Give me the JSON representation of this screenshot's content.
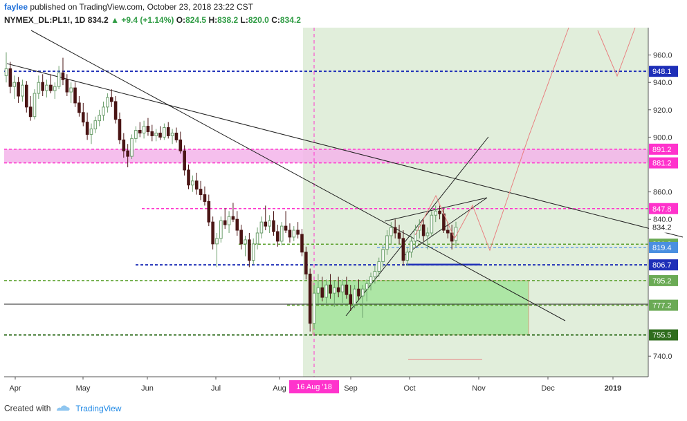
{
  "header": {
    "author": "faylee",
    "published": " published on TradingView.com, October 23, 2018 23:22 CST",
    "symbol": "NYMEX_DL:PL1!, 1D",
    "last": "834.2",
    "change": "+9.4 (+1.14%)",
    "o_label": "O:",
    "o": "824.5",
    "h_label": "H:",
    "h": "838.2",
    "l_label": "L:",
    "l": "820.0",
    "c_label": "C:",
    "c": "834.2"
  },
  "footer": {
    "created_with": "Created with",
    "brand": "TradingView"
  },
  "colors": {
    "up_candle": "#6b9e6b",
    "down_candle": "#4a1515",
    "blue_level": "#1e2fb8",
    "magenta": "#ff33cc",
    "green_level": "#5aa02c",
    "dark_green": "#2f6d1e",
    "projection": "#e88080",
    "shade": "#e1eedb",
    "zone_pink": "#f3b4ea",
    "zone_green": "#a8e6a0"
  },
  "chart_data": {
    "type": "candlestick",
    "instrument": "NYMEX_DL:PL1!",
    "timeframe": "1D",
    "x_ticks": [
      "Apr",
      "May",
      "Jun",
      "Jul",
      "Aug",
      "Sep",
      "Oct",
      "Nov",
      "Dec",
      "2019"
    ],
    "cursor_date": "16 Aug '18",
    "y_ticks": [
      "960.0",
      "940.0",
      "920.0",
      "900.0",
      "860.0",
      "840.0",
      "740.0"
    ],
    "ylim": [
      727,
      980
    ],
    "price_labels": [
      {
        "text": "948.1",
        "value": 948.1,
        "style": "blue"
      },
      {
        "text": "891.2",
        "value": 891.2,
        "style": "magenta"
      },
      {
        "text": "881.2",
        "value": 881.2,
        "style": "magenta"
      },
      {
        "text": "847.8",
        "value": 847.8,
        "style": "magenta"
      },
      {
        "text": "834.2",
        "value": 834.2,
        "style": "last"
      },
      {
        "text": "821.8",
        "value": 821.8,
        "style": "green"
      },
      {
        "text": "819.4",
        "value": 819.4,
        "style": "lightblue"
      },
      {
        "text": "806.7",
        "value": 806.7,
        "style": "blue"
      },
      {
        "text": "795.2",
        "value": 795.2,
        "style": "green"
      },
      {
        "text": "777.2",
        "value": 777.2,
        "style": "green"
      },
      {
        "text": "755.5",
        "value": 755.5,
        "style": "darkgreen"
      }
    ],
    "candles": [
      {
        "o": 945,
        "h": 962,
        "l": 940,
        "c": 950
      },
      {
        "o": 950,
        "h": 955,
        "l": 932,
        "c": 937
      },
      {
        "o": 937,
        "h": 945,
        "l": 928,
        "c": 940
      },
      {
        "o": 940,
        "h": 944,
        "l": 925,
        "c": 930
      },
      {
        "o": 930,
        "h": 942,
        "l": 926,
        "c": 938
      },
      {
        "o": 938,
        "h": 941,
        "l": 918,
        "c": 922
      },
      {
        "o": 922,
        "h": 930,
        "l": 912,
        "c": 915
      },
      {
        "o": 915,
        "h": 935,
        "l": 913,
        "c": 932
      },
      {
        "o": 932,
        "h": 945,
        "l": 928,
        "c": 940
      },
      {
        "o": 940,
        "h": 946,
        "l": 930,
        "c": 934
      },
      {
        "o": 934,
        "h": 942,
        "l": 929,
        "c": 938
      },
      {
        "o": 938,
        "h": 946,
        "l": 932,
        "c": 934
      },
      {
        "o": 934,
        "h": 940,
        "l": 928,
        "c": 937
      },
      {
        "o": 937,
        "h": 952,
        "l": 935,
        "c": 947
      },
      {
        "o": 947,
        "h": 958,
        "l": 938,
        "c": 942
      },
      {
        "o": 942,
        "h": 946,
        "l": 930,
        "c": 933
      },
      {
        "o": 933,
        "h": 940,
        "l": 925,
        "c": 936
      },
      {
        "o": 936,
        "h": 940,
        "l": 922,
        "c": 925
      },
      {
        "o": 925,
        "h": 930,
        "l": 915,
        "c": 918
      },
      {
        "o": 918,
        "h": 925,
        "l": 908,
        "c": 911
      },
      {
        "o": 911,
        "h": 918,
        "l": 898,
        "c": 902
      },
      {
        "o": 902,
        "h": 910,
        "l": 895,
        "c": 906
      },
      {
        "o": 906,
        "h": 915,
        "l": 903,
        "c": 912
      },
      {
        "o": 912,
        "h": 920,
        "l": 908,
        "c": 916
      },
      {
        "o": 916,
        "h": 926,
        "l": 912,
        "c": 922
      },
      {
        "o": 922,
        "h": 932,
        "l": 918,
        "c": 929
      },
      {
        "o": 929,
        "h": 935,
        "l": 922,
        "c": 926
      },
      {
        "o": 926,
        "h": 930,
        "l": 910,
        "c": 913
      },
      {
        "o": 913,
        "h": 918,
        "l": 895,
        "c": 898
      },
      {
        "o": 898,
        "h": 903,
        "l": 885,
        "c": 890
      },
      {
        "o": 890,
        "h": 895,
        "l": 878,
        "c": 886
      },
      {
        "o": 886,
        "h": 902,
        "l": 884,
        "c": 899
      },
      {
        "o": 899,
        "h": 908,
        "l": 896,
        "c": 905
      },
      {
        "o": 905,
        "h": 911,
        "l": 900,
        "c": 903
      },
      {
        "o": 903,
        "h": 912,
        "l": 899,
        "c": 908
      },
      {
        "o": 908,
        "h": 914,
        "l": 901,
        "c": 904
      },
      {
        "o": 904,
        "h": 909,
        "l": 897,
        "c": 901
      },
      {
        "o": 901,
        "h": 906,
        "l": 897,
        "c": 903
      },
      {
        "o": 903,
        "h": 908,
        "l": 898,
        "c": 900
      },
      {
        "o": 900,
        "h": 910,
        "l": 898,
        "c": 907
      },
      {
        "o": 907,
        "h": 911,
        "l": 899,
        "c": 901
      },
      {
        "o": 901,
        "h": 906,
        "l": 895,
        "c": 903
      },
      {
        "o": 903,
        "h": 907,
        "l": 896,
        "c": 898
      },
      {
        "o": 898,
        "h": 904,
        "l": 888,
        "c": 890
      },
      {
        "o": 890,
        "h": 894,
        "l": 872,
        "c": 876
      },
      {
        "o": 876,
        "h": 880,
        "l": 862,
        "c": 865
      },
      {
        "o": 865,
        "h": 872,
        "l": 860,
        "c": 868
      },
      {
        "o": 868,
        "h": 874,
        "l": 858,
        "c": 862
      },
      {
        "o": 862,
        "h": 868,
        "l": 854,
        "c": 858
      },
      {
        "o": 858,
        "h": 864,
        "l": 850,
        "c": 853
      },
      {
        "o": 853,
        "h": 858,
        "l": 835,
        "c": 838
      },
      {
        "o": 838,
        "h": 842,
        "l": 818,
        "c": 822
      },
      {
        "o": 822,
        "h": 830,
        "l": 805,
        "c": 826
      },
      {
        "o": 826,
        "h": 842,
        "l": 823,
        "c": 839
      },
      {
        "o": 839,
        "h": 848,
        "l": 833,
        "c": 836
      },
      {
        "o": 836,
        "h": 846,
        "l": 830,
        "c": 842
      },
      {
        "o": 842,
        "h": 852,
        "l": 838,
        "c": 840
      },
      {
        "o": 840,
        "h": 846,
        "l": 828,
        "c": 832
      },
      {
        "o": 832,
        "h": 836,
        "l": 818,
        "c": 822
      },
      {
        "o": 822,
        "h": 828,
        "l": 813,
        "c": 825
      },
      {
        "o": 825,
        "h": 830,
        "l": 805,
        "c": 810
      },
      {
        "o": 810,
        "h": 826,
        "l": 807,
        "c": 822
      },
      {
        "o": 822,
        "h": 834,
        "l": 818,
        "c": 830
      },
      {
        "o": 830,
        "h": 842,
        "l": 826,
        "c": 838
      },
      {
        "o": 838,
        "h": 850,
        "l": 832,
        "c": 835
      },
      {
        "o": 835,
        "h": 843,
        "l": 830,
        "c": 839
      },
      {
        "o": 839,
        "h": 846,
        "l": 828,
        "c": 831
      },
      {
        "o": 831,
        "h": 836,
        "l": 820,
        "c": 824
      },
      {
        "o": 824,
        "h": 838,
        "l": 821,
        "c": 835
      },
      {
        "o": 835,
        "h": 846,
        "l": 830,
        "c": 832
      },
      {
        "o": 832,
        "h": 837,
        "l": 823,
        "c": 827
      },
      {
        "o": 827,
        "h": 835,
        "l": 824,
        "c": 832
      },
      {
        "o": 832,
        "h": 838,
        "l": 826,
        "c": 829
      },
      {
        "o": 829,
        "h": 833,
        "l": 813,
        "c": 816
      },
      {
        "o": 816,
        "h": 820,
        "l": 796,
        "c": 800
      },
      {
        "o": 800,
        "h": 804,
        "l": 758,
        "c": 764
      },
      {
        "o": 764,
        "h": 792,
        "l": 760,
        "c": 786
      },
      {
        "o": 786,
        "h": 800,
        "l": 778,
        "c": 790
      },
      {
        "o": 790,
        "h": 798,
        "l": 780,
        "c": 783
      },
      {
        "o": 783,
        "h": 796,
        "l": 778,
        "c": 792
      },
      {
        "o": 792,
        "h": 800,
        "l": 782,
        "c": 786
      },
      {
        "o": 786,
        "h": 795,
        "l": 776,
        "c": 790
      },
      {
        "o": 790,
        "h": 798,
        "l": 783,
        "c": 787
      },
      {
        "o": 787,
        "h": 796,
        "l": 779,
        "c": 792
      },
      {
        "o": 792,
        "h": 798,
        "l": 782,
        "c": 785
      },
      {
        "o": 785,
        "h": 792,
        "l": 773,
        "c": 778
      },
      {
        "o": 778,
        "h": 792,
        "l": 775,
        "c": 789
      },
      {
        "o": 789,
        "h": 796,
        "l": 781,
        "c": 784
      },
      {
        "o": 784,
        "h": 792,
        "l": 768,
        "c": 789
      },
      {
        "o": 789,
        "h": 796,
        "l": 780,
        "c": 793
      },
      {
        "o": 793,
        "h": 801,
        "l": 788,
        "c": 798
      },
      {
        "o": 798,
        "h": 806,
        "l": 793,
        "c": 802
      },
      {
        "o": 802,
        "h": 812,
        "l": 798,
        "c": 809
      },
      {
        "o": 809,
        "h": 822,
        "l": 805,
        "c": 818
      },
      {
        "o": 818,
        "h": 832,
        "l": 814,
        "c": 828
      },
      {
        "o": 828,
        "h": 838,
        "l": 822,
        "c": 834
      },
      {
        "o": 834,
        "h": 840,
        "l": 826,
        "c": 830
      },
      {
        "o": 830,
        "h": 836,
        "l": 822,
        "c": 826
      },
      {
        "o": 826,
        "h": 832,
        "l": 806,
        "c": 810
      },
      {
        "o": 810,
        "h": 820,
        "l": 806,
        "c": 816
      },
      {
        "o": 816,
        "h": 828,
        "l": 812,
        "c": 824
      },
      {
        "o": 824,
        "h": 836,
        "l": 820,
        "c": 832
      },
      {
        "o": 832,
        "h": 840,
        "l": 826,
        "c": 836
      },
      {
        "o": 836,
        "h": 840,
        "l": 824,
        "c": 828
      },
      {
        "o": 828,
        "h": 834,
        "l": 818,
        "c": 830
      },
      {
        "o": 830,
        "h": 846,
        "l": 828,
        "c": 843
      },
      {
        "o": 843,
        "h": 850,
        "l": 838,
        "c": 846
      },
      {
        "o": 846,
        "h": 850,
        "l": 840,
        "c": 844
      },
      {
        "o": 844,
        "h": 848,
        "l": 830,
        "c": 832
      },
      {
        "o": 832,
        "h": 838,
        "l": 826,
        "c": 830
      },
      {
        "o": 830,
        "h": 836,
        "l": 818,
        "c": 824
      },
      {
        "o": 824.5,
        "h": 838.2,
        "l": 820.0,
        "c": 834.2
      }
    ]
  }
}
